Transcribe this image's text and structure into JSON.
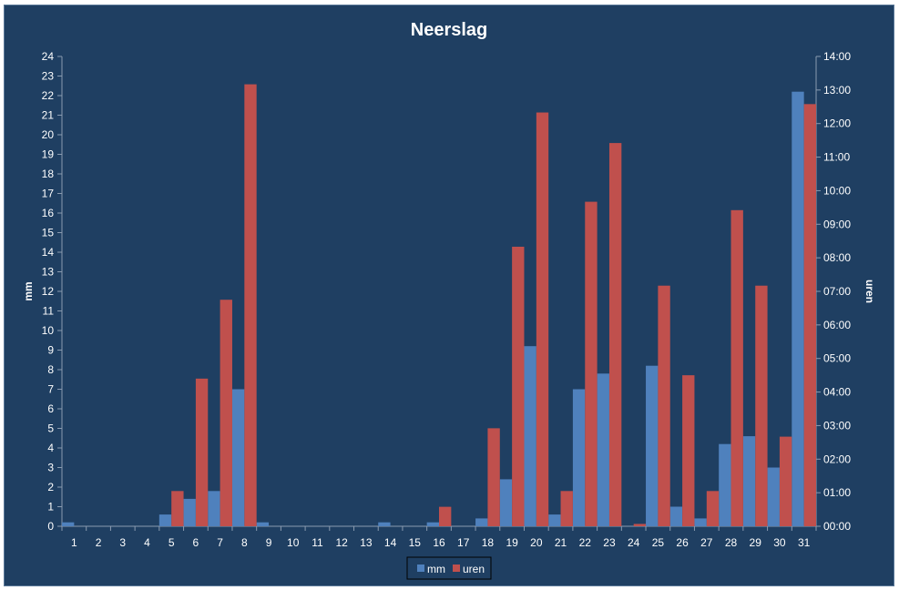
{
  "chart_data": {
    "type": "bar",
    "title": "Neerslag",
    "xlabel": "",
    "ylabel_left": "mm",
    "ylabel_right": "uren",
    "ylim_left": [
      0,
      24
    ],
    "ylim_right_hours": [
      0,
      14
    ],
    "left_ticks": [
      "0",
      "1",
      "2",
      "3",
      "4",
      "5",
      "6",
      "7",
      "8",
      "9",
      "10",
      "11",
      "12",
      "13",
      "14",
      "15",
      "16",
      "17",
      "18",
      "19",
      "20",
      "21",
      "22",
      "23",
      "24"
    ],
    "right_ticks": [
      "00:00",
      "01:00",
      "02:00",
      "03:00",
      "04:00",
      "05:00",
      "06:00",
      "07:00",
      "08:00",
      "09:00",
      "10:00",
      "11:00",
      "12:00",
      "13:00",
      "14:00"
    ],
    "categories": [
      "1",
      "2",
      "3",
      "4",
      "5",
      "6",
      "7",
      "8",
      "9",
      "10",
      "11",
      "12",
      "13",
      "14",
      "15",
      "16",
      "17",
      "18",
      "19",
      "20",
      "21",
      "22",
      "23",
      "24",
      "25",
      "26",
      "27",
      "28",
      "29",
      "30",
      "31"
    ],
    "series": [
      {
        "name": "mm",
        "axis": "left",
        "color": "#4f81bd",
        "values": [
          0.2,
          0,
          0,
          0,
          0.6,
          1.4,
          1.8,
          7.0,
          0.2,
          0,
          0,
          0,
          0,
          0.2,
          0,
          0.2,
          0,
          0.4,
          2.4,
          9.2,
          0.6,
          7.0,
          7.8,
          0,
          8.2,
          1.0,
          0.4,
          4.2,
          4.6,
          3.0,
          22.2
        ]
      },
      {
        "name": "uren",
        "axis": "right",
        "color": "#c0504d",
        "values": [
          0,
          0,
          0,
          0,
          1.05,
          4.4,
          6.75,
          13.17,
          0,
          0,
          0,
          0,
          0,
          0,
          0,
          0.58,
          0,
          2.92,
          8.33,
          12.33,
          1.05,
          9.67,
          11.42,
          0.07,
          7.17,
          4.5,
          1.05,
          9.42,
          7.17,
          2.67,
          12.58
        ]
      }
    ],
    "legend": {
      "placement": "bottom",
      "items": [
        "mm",
        "uren"
      ]
    }
  }
}
